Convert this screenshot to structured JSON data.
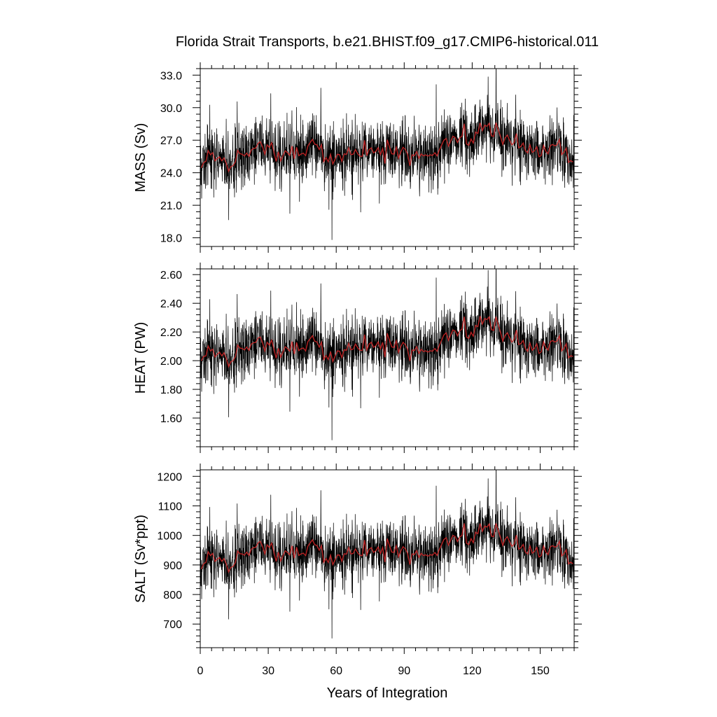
{
  "figure": {
    "title": "Florida Strait Transports, b.e21.BHIST.f09_g17.CMIP6-historical.011",
    "xlabel": "Years of Integration"
  },
  "chart_data": [
    {
      "type": "line",
      "ylabel": "MASS (Sv)",
      "xlim": [
        0,
        165
      ],
      "ylim": [
        17.2,
        33.6
      ],
      "x_ticks": [
        0,
        30,
        60,
        90,
        120,
        150
      ],
      "y_ticks": [
        18.0,
        21.0,
        24.0,
        27.0,
        30.0,
        33.0
      ],
      "y_tick_labels": [
        "18.0",
        "21.0",
        "24.0",
        "27.0",
        "30.0",
        "33.0"
      ],
      "grid": false,
      "series": [
        {
          "role": "monthly",
          "color": "#000000",
          "base": 25.7,
          "amp": 1.45,
          "spike": 2.8,
          "decimals": 2
        },
        {
          "role": "annual-mean",
          "color": "#d62728",
          "decimals": 2
        }
      ],
      "mean_profile": {
        "years": [
          0,
          5,
          10,
          15,
          20,
          25,
          30,
          35,
          40,
          45,
          50,
          55,
          60,
          65,
          70,
          75,
          80,
          85,
          90,
          95,
          100,
          105,
          110,
          115,
          120,
          125,
          130,
          135,
          140,
          145,
          150,
          155,
          160,
          165
        ],
        "values": [
          24.3,
          25.6,
          24.9,
          24.8,
          26.0,
          26.7,
          26.5,
          25.7,
          25.9,
          25.8,
          26.8,
          25.2,
          25.6,
          25.9,
          26.0,
          26.2,
          26.4,
          26.2,
          25.6,
          25.7,
          25.4,
          25.9,
          26.8,
          27.5,
          27.0,
          28.2,
          27.6,
          26.9,
          26.9,
          25.9,
          26.1,
          26.6,
          26.5,
          24.6
        ]
      }
    },
    {
      "type": "line",
      "ylabel": "HEAT (PW)",
      "xlim": [
        0,
        165
      ],
      "ylim": [
        1.4,
        2.64
      ],
      "x_ticks": [
        0,
        30,
        60,
        90,
        120,
        150
      ],
      "y_ticks": [
        1.6,
        1.8,
        2.0,
        2.2,
        2.4,
        2.6
      ],
      "y_tick_labels": [
        "1.60",
        "1.80",
        "2.00",
        "2.20",
        "2.40",
        "2.60"
      ],
      "grid": false,
      "series": [
        {
          "role": "monthly",
          "color": "#000000",
          "base": 2.08,
          "amp": 0.11,
          "spike": 0.22,
          "decimals": 3
        },
        {
          "role": "annual-mean",
          "color": "#d62728",
          "decimals": 3
        }
      ],
      "mean_profile": {
        "years": [
          0,
          5,
          10,
          15,
          20,
          25,
          30,
          35,
          40,
          45,
          50,
          55,
          60,
          65,
          70,
          75,
          80,
          85,
          90,
          95,
          100,
          105,
          110,
          115,
          120,
          125,
          130,
          135,
          140,
          145,
          150,
          155,
          160,
          165
        ],
        "values": [
          1.99,
          2.06,
          2.02,
          2.01,
          2.11,
          2.16,
          2.12,
          2.07,
          2.09,
          2.09,
          2.15,
          2.02,
          2.06,
          2.09,
          2.11,
          2.12,
          2.14,
          2.13,
          2.07,
          2.08,
          2.05,
          2.09,
          2.17,
          2.23,
          2.19,
          2.28,
          2.23,
          2.15,
          2.16,
          2.07,
          2.1,
          2.14,
          2.13,
          2.0
        ]
      }
    },
    {
      "type": "line",
      "ylabel": "SALT (Sv*ppt)",
      "xlim": [
        0,
        165
      ],
      "ylim": [
        620,
        1222
      ],
      "x_ticks": [
        0,
        30,
        60,
        90,
        120,
        150
      ],
      "x_tick_labels": [
        "0",
        "30",
        "60",
        "90",
        "120",
        "150"
      ],
      "y_ticks": [
        700,
        800,
        900,
        1000,
        1100,
        1200
      ],
      "y_tick_labels": [
        "700",
        "800",
        "900",
        "1000",
        "1100",
        "1200"
      ],
      "grid": false,
      "series": [
        {
          "role": "monthly",
          "color": "#000000",
          "base": 940,
          "amp": 52,
          "spike": 100,
          "decimals": 1
        },
        {
          "role": "annual-mean",
          "color": "#d62728",
          "decimals": 1
        }
      ],
      "mean_profile": {
        "years": [
          0,
          5,
          10,
          15,
          20,
          25,
          30,
          35,
          40,
          45,
          50,
          55,
          60,
          65,
          70,
          75,
          80,
          85,
          90,
          95,
          100,
          105,
          110,
          115,
          120,
          125,
          130,
          135,
          140,
          145,
          150,
          155,
          160,
          165
        ],
        "values": [
          880,
          930,
          905,
          900,
          950,
          975,
          965,
          935,
          945,
          940,
          975,
          915,
          930,
          945,
          950,
          955,
          965,
          960,
          935,
          940,
          925,
          945,
          980,
          1005,
          985,
          1025,
          1005,
          975,
          975,
          940,
          950,
          965,
          960,
          890
        ]
      }
    }
  ]
}
